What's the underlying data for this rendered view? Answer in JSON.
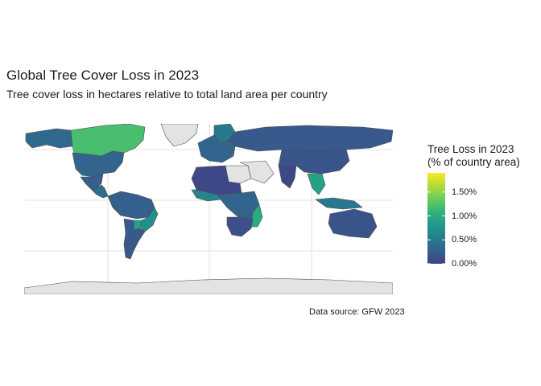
{
  "chart": {
    "title": "Global Tree Cover Loss in 2023",
    "subtitle": "Tree cover loss in hectares relative to total land area per country",
    "source": "Data source: GFW 2023"
  },
  "legend": {
    "title_line1": "Tree Loss in 2023",
    "title_line2": "(% of country area)",
    "ticks": [
      {
        "label": "1.50%",
        "value": 1.5
      },
      {
        "label": "1.00%",
        "value": 1.0
      },
      {
        "label": "0.50%",
        "value": 0.5
      },
      {
        "label": "0.00%",
        "value": 0.0
      }
    ],
    "max_value": 1.9,
    "colors": [
      "#440154",
      "#31688e",
      "#35b779",
      "#fde725"
    ],
    "no_data_color": "#e3e3e3"
  },
  "chart_data": {
    "type": "choropleth",
    "projection": "equirectangular",
    "fill_variable": "Tree loss in 2023 (% of country area)",
    "scale": "viridis",
    "range": [
      0,
      1.9
    ],
    "approximate_regions": [
      {
        "region": "Canada",
        "value": 1.2
      },
      {
        "region": "Alaska / USA west",
        "value": 0.35
      },
      {
        "region": "United States",
        "value": 0.3
      },
      {
        "region": "Mexico",
        "value": 0.25
      },
      {
        "region": "Central America",
        "value": 0.4
      },
      {
        "region": "Brazil (north)",
        "value": 0.25
      },
      {
        "region": "Brazil (south-east)",
        "value": 0.7
      },
      {
        "region": "Paraguay",
        "value": 0.9
      },
      {
        "region": "Argentina",
        "value": 0.2
      },
      {
        "region": "Greenland",
        "value": null
      },
      {
        "region": "Europe",
        "value": 0.3
      },
      {
        "region": "Scandinavia",
        "value": 0.5
      },
      {
        "region": "Russia",
        "value": 0.2
      },
      {
        "region": "Middle East",
        "value": null
      },
      {
        "region": "Libya / Egypt",
        "value": null
      },
      {
        "region": "Sahara belt",
        "value": 0.05
      },
      {
        "region": "West Africa coast",
        "value": 0.6
      },
      {
        "region": "Central Africa",
        "value": 0.3
      },
      {
        "region": "Mozambique",
        "value": 1.0
      },
      {
        "region": "Southern Africa",
        "value": 0.1
      },
      {
        "region": "India",
        "value": 0.05
      },
      {
        "region": "China",
        "value": 0.15
      },
      {
        "region": "Southeast Asia",
        "value": 0.9
      },
      {
        "region": "Indonesia",
        "value": 0.5
      },
      {
        "region": "Australia",
        "value": 0.15
      },
      {
        "region": "Antarctica",
        "value": null
      }
    ]
  }
}
